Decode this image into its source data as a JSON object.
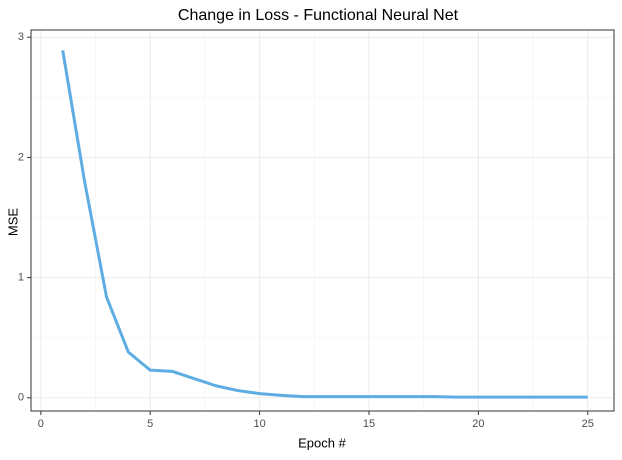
{
  "chart_data": {
    "type": "line",
    "title": "Change in Loss - Functional Neural Net",
    "x_label": "Epoch #",
    "y_label": "MSE",
    "x": [
      1,
      2,
      3,
      4,
      5,
      6,
      7,
      8,
      9,
      10,
      11,
      12,
      13,
      14,
      15,
      16,
      17,
      18,
      19,
      20,
      21,
      22,
      23,
      24,
      25
    ],
    "series": [
      {
        "name": "MSE",
        "color": "#5dade2",
        "values": [
          2.89,
          1.8,
          0.84,
          0.38,
          0.23,
          0.22,
          0.16,
          0.1,
          0.06,
          0.035,
          0.02,
          0.01,
          0.01,
          0.01,
          0.01,
          0.01,
          0.01,
          0.01,
          0.005,
          0.005,
          0.005,
          0.005,
          0.005,
          0.005,
          0.005
        ]
      }
    ],
    "xlim": [
      -0.45,
      26.2
    ],
    "xticks": [
      0,
      5,
      10,
      15,
      20,
      25
    ],
    "ylim": [
      -0.11,
      3.06
    ],
    "yticks": [
      0,
      1,
      2,
      3
    ],
    "grid": true
  }
}
